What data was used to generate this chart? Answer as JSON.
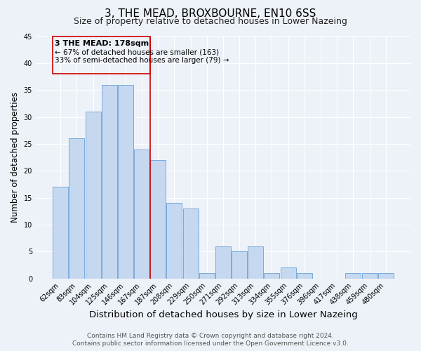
{
  "title": "3, THE MEAD, BROXBOURNE, EN10 6SS",
  "subtitle": "Size of property relative to detached houses in Lower Nazeing",
  "xlabel": "Distribution of detached houses by size in Lower Nazeing",
  "ylabel": "Number of detached properties",
  "categories": [
    "62sqm",
    "83sqm",
    "104sqm",
    "125sqm",
    "146sqm",
    "167sqm",
    "187sqm",
    "208sqm",
    "229sqm",
    "250sqm",
    "271sqm",
    "292sqm",
    "313sqm",
    "334sqm",
    "355sqm",
    "376sqm",
    "396sqm",
    "417sqm",
    "438sqm",
    "459sqm",
    "480sqm"
  ],
  "values": [
    17,
    26,
    31,
    36,
    36,
    24,
    22,
    14,
    13,
    1,
    6,
    5,
    6,
    1,
    2,
    1,
    0,
    0,
    1,
    1,
    1
  ],
  "bar_color": "#c5d8f0",
  "bar_edge_color": "#7aabdb",
  "vline_x": 5.5,
  "vline_color": "#cc0000",
  "ylim": [
    0,
    45
  ],
  "yticks": [
    0,
    5,
    10,
    15,
    20,
    25,
    30,
    35,
    40,
    45
  ],
  "annotation_title": "3 THE MEAD: 178sqm",
  "annotation_line1": "← 67% of detached houses are smaller (163)",
  "annotation_line2": "33% of semi-detached houses are larger (79) →",
  "annotation_box_color": "#cc0000",
  "footer_line1": "Contains HM Land Registry data © Crown copyright and database right 2024.",
  "footer_line2": "Contains public sector information licensed under the Open Government Licence v3.0.",
  "background_color": "#edf2f9",
  "grid_color": "#ffffff",
  "title_fontsize": 11,
  "subtitle_fontsize": 9,
  "xlabel_fontsize": 9.5,
  "ylabel_fontsize": 8.5,
  "tick_fontsize": 7,
  "footer_fontsize": 6.5,
  "annot_title_fontsize": 8,
  "annot_text_fontsize": 7.5
}
